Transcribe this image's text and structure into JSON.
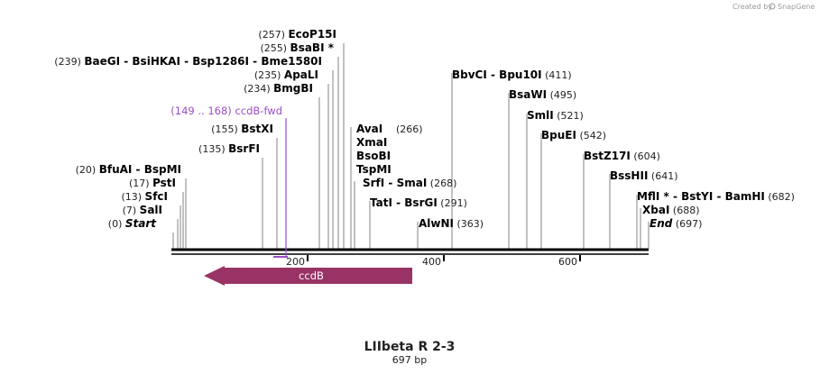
{
  "credit": "Created by",
  "credit_brand": "SnapGene",
  "title": "LIIbeta R 2-3",
  "subtitle": "697 bp",
  "ticks": [
    {
      "label": "200",
      "pos": 200
    },
    {
      "label": "400",
      "pos": 400
    },
    {
      "label": "600",
      "pos": 600
    }
  ],
  "sites": [
    {
      "pos": "(0)",
      "names": [
        "Start"
      ],
      "italic": true
    },
    {
      "pos": "(7)",
      "names": [
        "SalI"
      ]
    },
    {
      "pos": "(13)",
      "names": [
        "SfcI"
      ]
    },
    {
      "pos": "(17)",
      "names": [
        "PstI"
      ]
    },
    {
      "pos": "(20)",
      "names": [
        "BfuAI",
        "BspMI"
      ]
    },
    {
      "pos": "(135)",
      "names": [
        "BsrFI"
      ]
    },
    {
      "pos": "(155)",
      "names": [
        "BstXI"
      ]
    },
    {
      "pos": "(234)",
      "names": [
        "BmgBI"
      ]
    },
    {
      "pos": "(235)",
      "names": [
        "ApaLI"
      ]
    },
    {
      "pos": "(239)",
      "names": [
        "BaeGI",
        "BsiHKAI",
        "Bsp1286I",
        "Bme1580I"
      ]
    },
    {
      "pos": "(255)",
      "names": [
        "BsaBI *"
      ]
    },
    {
      "pos": "(257)",
      "names": [
        "EcoP15I"
      ]
    },
    {
      "pos": "(266)",
      "names": [
        "AvaI",
        "XmaI",
        "BsoBI",
        "TspMI"
      ]
    },
    {
      "pos": "(268)",
      "names": [
        "SrfI",
        "SmaI"
      ]
    },
    {
      "pos": "(291)",
      "names": [
        "TatI",
        "BsrGI"
      ]
    },
    {
      "pos": "(363)",
      "names": [
        "AlwNI"
      ]
    },
    {
      "pos": "(411)",
      "names": [
        "BbvCI",
        "Bpu10I"
      ]
    },
    {
      "pos": "(495)",
      "names": [
        "BsaWI"
      ]
    },
    {
      "pos": "(521)",
      "names": [
        "SmlI"
      ]
    },
    {
      "pos": "(542)",
      "names": [
        "BpuEI"
      ]
    },
    {
      "pos": "(604)",
      "names": [
        "BstZ17I"
      ]
    },
    {
      "pos": "(641)",
      "names": [
        "BssHII"
      ]
    },
    {
      "pos": "(682)",
      "names": [
        "MflI *",
        "BstYI",
        "BamHI"
      ]
    },
    {
      "pos": "(688)",
      "names": [
        "XbaI"
      ]
    },
    {
      "pos": "(697)",
      "names": [
        "End"
      ],
      "italic": true
    }
  ],
  "primer": {
    "range": "(149 .. 168)",
    "name": "ccdB-fwd",
    "color": "#9b4dca"
  },
  "feature": {
    "name": "ccdB",
    "color": "#993366",
    "direction": "reverse"
  }
}
